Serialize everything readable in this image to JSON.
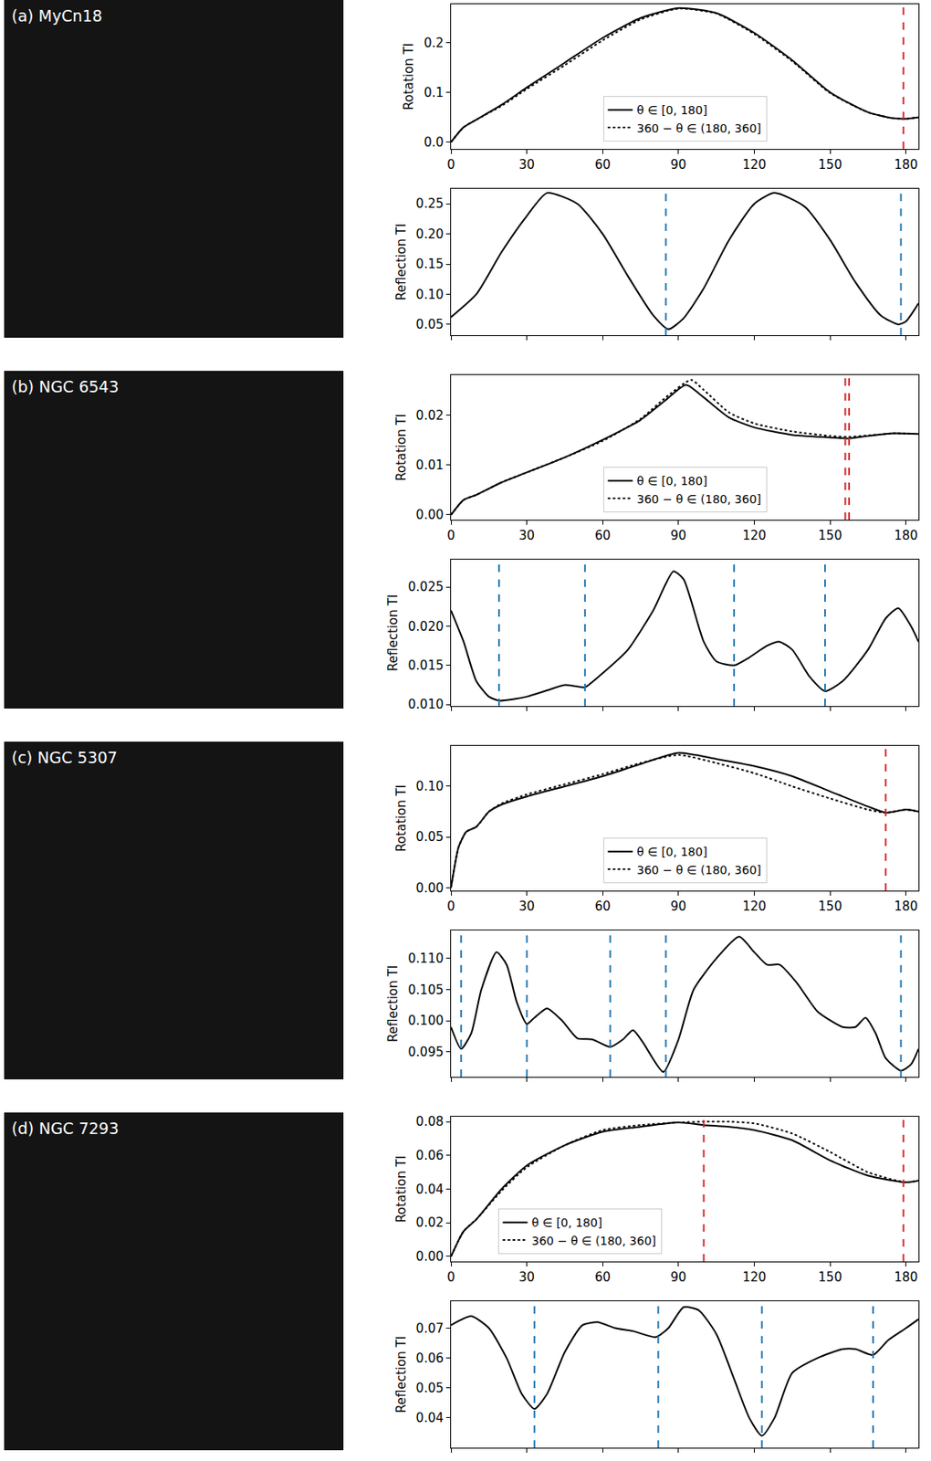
{
  "images": [
    {
      "label": "(a) MyCn18"
    },
    {
      "label": "(b) NGC 6543"
    },
    {
      "label": "(c) NGC 5307"
    },
    {
      "label": "(d) NGC 7293"
    }
  ],
  "chart_data": [
    {
      "type": "line",
      "ylabel": "Rotation TI",
      "xlim": [
        0,
        185
      ],
      "xticks": [
        0,
        30,
        60,
        90,
        120,
        150,
        180
      ],
      "ylim": [
        -0.014,
        0.278
      ],
      "yticks": [
        {
          "value": 0,
          "label": "0.0"
        },
        0.1,
        0.2
      ],
      "tick_labels": true,
      "legend": "lower center",
      "series": [
        {
          "name": "θ ∈ [0, 180]",
          "color": "#000000",
          "line_style": "solid",
          "x": [
            0,
            5,
            10,
            20,
            30,
            45,
            60,
            75,
            90,
            105,
            120,
            135,
            150,
            165,
            175,
            180,
            185
          ],
          "values": [
            0,
            0.03,
            0.045,
            0.075,
            0.11,
            0.16,
            0.21,
            0.25,
            0.27,
            0.26,
            0.22,
            0.165,
            0.1,
            0.06,
            0.048,
            0.047,
            0.05
          ]
        },
        {
          "name": "360 − θ ∈ (180, 360]",
          "color": "#000000",
          "line_style": "dotted",
          "x": [
            0,
            5,
            10,
            20,
            30,
            45,
            60,
            75,
            90,
            105,
            120,
            135,
            150,
            165,
            175,
            180,
            185
          ],
          "values": [
            0,
            0.03,
            0.045,
            0.073,
            0.107,
            0.155,
            0.205,
            0.247,
            0.269,
            0.259,
            0.218,
            0.163,
            0.099,
            0.06,
            0.048,
            0.047,
            0.05
          ]
        }
      ],
      "vlines": {
        "x": [
          179
        ],
        "color": "#d62728",
        "line_style": "dashed"
      }
    },
    {
      "type": "line",
      "ylabel": "Reflection TI",
      "xlim": [
        0,
        185
      ],
      "xticks": [
        0,
        30,
        60,
        90,
        120,
        150,
        180
      ],
      "ylim": [
        0.032,
        0.275
      ],
      "yticks": [
        0.05,
        {
          "value": 0.1,
          "label": "0.10"
        },
        0.15,
        {
          "value": 0.2,
          "label": "0.20"
        },
        0.25
      ],
      "tick_labels": "y",
      "series": [
        {
          "name": "Reflection TI",
          "color": "#000000",
          "line_style": "solid",
          "x": [
            0,
            10,
            20,
            30,
            38,
            50,
            60,
            70,
            80,
            86,
            92,
            100,
            110,
            120,
            128,
            140,
            150,
            160,
            170,
            177,
            180,
            185
          ],
          "values": [
            0.062,
            0.1,
            0.17,
            0.23,
            0.268,
            0.25,
            0.2,
            0.13,
            0.065,
            0.042,
            0.06,
            0.11,
            0.19,
            0.25,
            0.268,
            0.245,
            0.19,
            0.12,
            0.065,
            0.05,
            0.055,
            0.085
          ]
        }
      ],
      "vlines": {
        "x": [
          85,
          178
        ],
        "color": "#1f77b4",
        "line_style": "dashed"
      }
    },
    {
      "type": "line",
      "ylabel": "Rotation TI",
      "xlim": [
        0,
        185
      ],
      "xticks": [
        0,
        30,
        60,
        90,
        120,
        150,
        180
      ],
      "ylim": [
        -0.001,
        0.028
      ],
      "yticks": [
        {
          "value": 0,
          "label": "0.00"
        },
        0.01,
        0.02
      ],
      "tick_labels": true,
      "legend": "lower center",
      "series": [
        {
          "name": "θ ∈ [0, 180]",
          "color": "#000000",
          "line_style": "solid",
          "x": [
            0,
            5,
            10,
            20,
            30,
            45,
            60,
            75,
            85,
            93,
            100,
            110,
            120,
            135,
            150,
            157,
            165,
            175,
            185
          ],
          "values": [
            0,
            0.003,
            0.004,
            0.0065,
            0.0085,
            0.0115,
            0.015,
            0.019,
            0.023,
            0.026,
            0.0235,
            0.0195,
            0.0175,
            0.016,
            0.0155,
            0.0153,
            0.0158,
            0.0163,
            0.0162
          ]
        },
        {
          "name": "360 − θ ∈ (180, 360]",
          "color": "#000000",
          "line_style": "dotted",
          "x": [
            0,
            5,
            10,
            20,
            30,
            45,
            60,
            75,
            85,
            95,
            100,
            110,
            120,
            135,
            150,
            157,
            165,
            175,
            185
          ],
          "values": [
            0,
            0.003,
            0.004,
            0.0065,
            0.0085,
            0.0115,
            0.0148,
            0.0192,
            0.0235,
            0.027,
            0.025,
            0.0205,
            0.0183,
            0.0167,
            0.0158,
            0.0156,
            0.0159,
            0.0163,
            0.0162
          ]
        }
      ],
      "vlines": {
        "x": [
          156,
          157.5
        ],
        "color": "#d62728",
        "line_style": "dashed"
      }
    },
    {
      "type": "line",
      "ylabel": "Reflection TI",
      "xlim": [
        0,
        185
      ],
      "xticks": [
        0,
        30,
        60,
        90,
        120,
        150,
        180
      ],
      "ylim": [
        0.0098,
        0.0285
      ],
      "yticks": [
        {
          "value": 0.01,
          "label": "0.010"
        },
        0.015,
        {
          "value": 0.02,
          "label": "0.020"
        },
        0.025
      ],
      "tick_labels": "y",
      "series": [
        {
          "name": "Reflection TI",
          "color": "#000000",
          "line_style": "solid",
          "x": [
            0,
            5,
            10,
            15,
            19,
            25,
            30,
            38,
            45,
            50,
            53,
            60,
            70,
            80,
            88,
            92,
            100,
            105,
            112,
            118,
            125,
            130,
            135,
            142,
            148,
            155,
            165,
            172,
            177,
            182,
            185
          ],
          "values": [
            0.022,
            0.018,
            0.013,
            0.011,
            0.0105,
            0.0107,
            0.011,
            0.0118,
            0.0125,
            0.0123,
            0.0122,
            0.014,
            0.017,
            0.022,
            0.027,
            0.026,
            0.018,
            0.0155,
            0.015,
            0.016,
            0.0175,
            0.018,
            0.017,
            0.0135,
            0.0117,
            0.013,
            0.017,
            0.021,
            0.0223,
            0.02,
            0.018
          ]
        }
      ],
      "vlines": {
        "x": [
          19,
          53,
          112,
          148
        ],
        "color": "#1f77b4",
        "line_style": "dashed"
      }
    },
    {
      "type": "line",
      "ylabel": "Rotation TI",
      "xlim": [
        0,
        185
      ],
      "xticks": [
        0,
        30,
        60,
        90,
        120,
        150,
        180
      ],
      "ylim": [
        -0.003,
        0.14
      ],
      "yticks": [
        {
          "value": 0,
          "label": "0.00"
        },
        0.05,
        {
          "value": 0.1,
          "label": "0.10"
        }
      ],
      "tick_labels": true,
      "legend": "lower center",
      "series": [
        {
          "name": "θ ∈ [0, 180]",
          "color": "#000000",
          "line_style": "solid",
          "x": [
            0,
            3,
            6,
            10,
            15,
            20,
            30,
            45,
            60,
            75,
            90,
            105,
            120,
            135,
            150,
            165,
            172,
            180,
            185
          ],
          "values": [
            0,
            0.04,
            0.055,
            0.06,
            0.075,
            0.082,
            0.09,
            0.1,
            0.11,
            0.122,
            0.133,
            0.127,
            0.12,
            0.11,
            0.095,
            0.08,
            0.074,
            0.077,
            0.075
          ]
        },
        {
          "name": "360 − θ ∈ (180, 360]",
          "color": "#000000",
          "line_style": "dotted",
          "x": [
            0,
            3,
            6,
            10,
            15,
            20,
            30,
            45,
            60,
            75,
            90,
            105,
            120,
            135,
            150,
            165,
            172,
            180,
            185
          ],
          "values": [
            0,
            0.04,
            0.055,
            0.06,
            0.075,
            0.083,
            0.092,
            0.102,
            0.112,
            0.123,
            0.131,
            0.123,
            0.113,
            0.1,
            0.088,
            0.077,
            0.074,
            0.077,
            0.075
          ]
        }
      ],
      "vlines": {
        "x": [
          172
        ],
        "color": "#d62728",
        "line_style": "dashed"
      }
    },
    {
      "type": "line",
      "ylabel": "Reflection TI",
      "xlim": [
        0,
        185
      ],
      "xticks": [
        0,
        30,
        60,
        90,
        120,
        150,
        180
      ],
      "ylim": [
        0.091,
        0.1145
      ],
      "yticks": [
        0.095,
        {
          "value": 0.1,
          "label": "0.100"
        },
        0.105,
        {
          "value": 0.11,
          "label": "0.110"
        }
      ],
      "tick_labels": "y",
      "series": [
        {
          "name": "Reflection TI",
          "color": "#000000",
          "line_style": "solid",
          "x": [
            0,
            4,
            8,
            12,
            18,
            22,
            26,
            30,
            33,
            38,
            44,
            50,
            56,
            63,
            68,
            72,
            76,
            84,
            90,
            96,
            105,
            114,
            120,
            125,
            130,
            137,
            145,
            155,
            160,
            164,
            168,
            172,
            178,
            182,
            185
          ],
          "values": [
            0.099,
            0.0955,
            0.098,
            0.105,
            0.111,
            0.109,
            0.103,
            0.0995,
            0.1005,
            0.102,
            0.1,
            0.0972,
            0.097,
            0.0958,
            0.097,
            0.0985,
            0.0965,
            0.0918,
            0.097,
            0.105,
            0.11,
            0.1135,
            0.111,
            0.109,
            0.109,
            0.106,
            0.1015,
            0.099,
            0.099,
            0.1005,
            0.098,
            0.094,
            0.092,
            0.093,
            0.0955
          ]
        }
      ],
      "vlines": {
        "x": [
          4,
          30,
          63,
          85,
          178
        ],
        "color": "#1f77b4",
        "line_style": "dashed"
      }
    },
    {
      "type": "line",
      "ylabel": "Rotation TI",
      "xlim": [
        0,
        185
      ],
      "xticks": [
        0,
        30,
        60,
        90,
        120,
        150,
        180
      ],
      "ylim": [
        -0.003,
        0.083
      ],
      "yticks": [
        {
          "value": 0,
          "label": "0.00"
        },
        0.02,
        0.04,
        0.06,
        0.08
      ],
      "tick_labels": true,
      "legend": "lower left",
      "series": [
        {
          "name": "θ ∈ [0, 180]",
          "color": "#000000",
          "line_style": "solid",
          "x": [
            0,
            5,
            10,
            20,
            30,
            45,
            60,
            75,
            90,
            100,
            110,
            120,
            135,
            150,
            165,
            180,
            185
          ],
          "values": [
            0,
            0.015,
            0.022,
            0.04,
            0.054,
            0.066,
            0.074,
            0.077,
            0.0795,
            0.078,
            0.077,
            0.075,
            0.069,
            0.057,
            0.048,
            0.044,
            0.045
          ]
        },
        {
          "name": "360 − θ ∈ (180, 360]",
          "color": "#000000",
          "line_style": "dotted",
          "x": [
            0,
            5,
            10,
            20,
            30,
            45,
            60,
            75,
            90,
            100,
            110,
            120,
            135,
            150,
            165,
            180,
            185
          ],
          "values": [
            0,
            0.015,
            0.022,
            0.039,
            0.053,
            0.066,
            0.075,
            0.078,
            0.0795,
            0.08,
            0.08,
            0.079,
            0.073,
            0.062,
            0.05,
            0.044,
            0.045
          ]
        }
      ],
      "vlines": {
        "x": [
          100,
          179
        ],
        "color": "#d62728",
        "line_style": "dashed"
      }
    },
    {
      "type": "line",
      "ylabel": "Reflection TI",
      "xlim": [
        0,
        185
      ],
      "xticks": [
        0,
        30,
        60,
        90,
        120,
        150,
        180
      ],
      "ylim": [
        0.03,
        0.079
      ],
      "yticks": [
        0.04,
        0.05,
        0.06,
        0.07
      ],
      "tick_labels": "y",
      "series": [
        {
          "name": "Reflection TI",
          "color": "#000000",
          "line_style": "solid",
          "x": [
            0,
            8,
            15,
            22,
            28,
            33,
            38,
            45,
            52,
            58,
            65,
            72,
            81,
            86,
            92,
            98,
            105,
            112,
            118,
            123,
            128,
            135,
            145,
            155,
            160,
            167,
            173,
            180,
            185
          ],
          "values": [
            0.071,
            0.074,
            0.07,
            0.06,
            0.048,
            0.043,
            0.048,
            0.062,
            0.071,
            0.072,
            0.07,
            0.069,
            0.067,
            0.07,
            0.077,
            0.076,
            0.068,
            0.053,
            0.04,
            0.034,
            0.04,
            0.055,
            0.06,
            0.063,
            0.063,
            0.061,
            0.066,
            0.07,
            0.073
          ]
        }
      ],
      "vlines": {
        "x": [
          33,
          82,
          123,
          167
        ],
        "color": "#1f77b4",
        "line_style": "dashed"
      }
    }
  ]
}
